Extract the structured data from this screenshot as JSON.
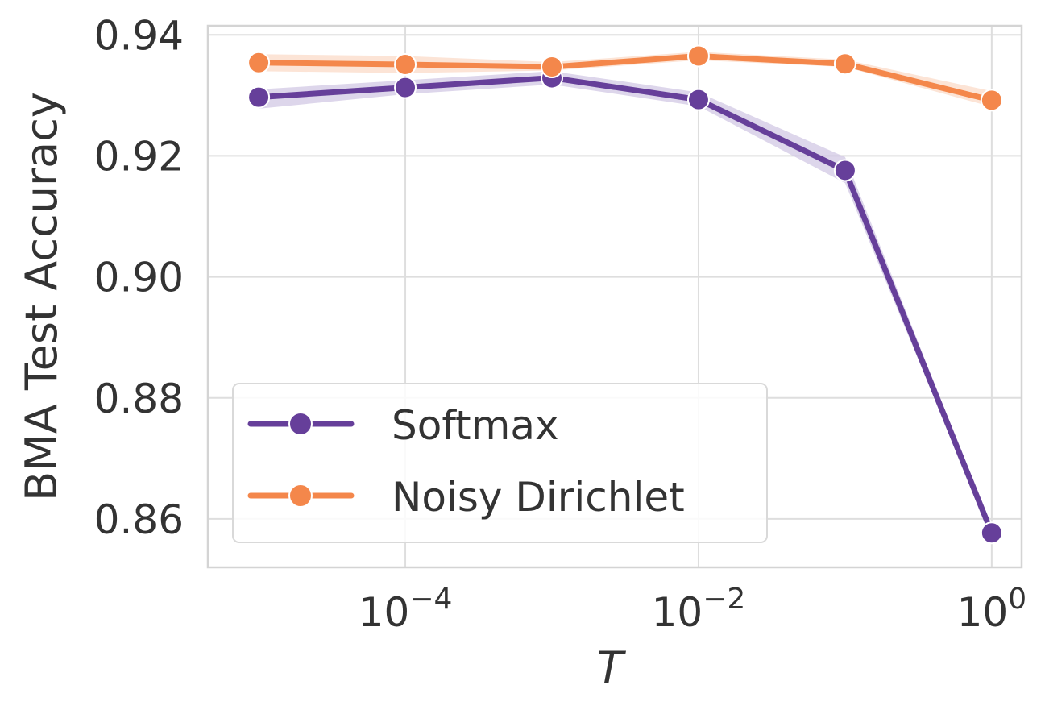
{
  "chart_data": {
    "type": "line",
    "xscale": "log",
    "x": [
      1e-05,
      0.0001,
      0.001,
      0.01,
      0.1,
      1
    ],
    "xlim": [
      4.5e-06,
      1.6
    ],
    "xticks": [
      0.0001,
      0.01,
      1
    ],
    "xtick_labels": [
      {
        "base": "10",
        "exp": "−4"
      },
      {
        "base": "10",
        "exp": "−2"
      },
      {
        "base": "10",
        "exp": "0"
      }
    ],
    "ylim": [
      0.852,
      0.9415
    ],
    "yticks": [
      0.86,
      0.88,
      0.9,
      0.92,
      0.94
    ],
    "ytick_labels": [
      "0.86",
      "0.88",
      "0.90",
      "0.92",
      "0.94"
    ],
    "xlabel": "T",
    "ylabel": "BMA Test Accuracy",
    "grid": true,
    "legend_position": "lower-left",
    "series": [
      {
        "name": "Softmax",
        "color": "#663f9a",
        "band_color": "#cfc4e3",
        "values": [
          0.9297,
          0.9313,
          0.9329,
          0.9293,
          0.9176,
          0.8577
        ],
        "lower": [
          0.9278,
          0.9302,
          0.9318,
          0.9282,
          0.9155,
          0.857
        ],
        "upper": [
          0.931,
          0.9325,
          0.934,
          0.9305,
          0.9198,
          0.8584
        ]
      },
      {
        "name": "Noisy Dirichlet",
        "color": "#f4874b",
        "band_color": "#fbd8c4",
        "values": [
          0.9354,
          0.9351,
          0.9347,
          0.9365,
          0.9352,
          0.9292
        ],
        "lower": [
          0.934,
          0.9337,
          0.9341,
          0.9358,
          0.9347,
          0.9281
        ],
        "upper": [
          0.9368,
          0.9365,
          0.9355,
          0.9372,
          0.9359,
          0.9307
        ]
      }
    ]
  }
}
